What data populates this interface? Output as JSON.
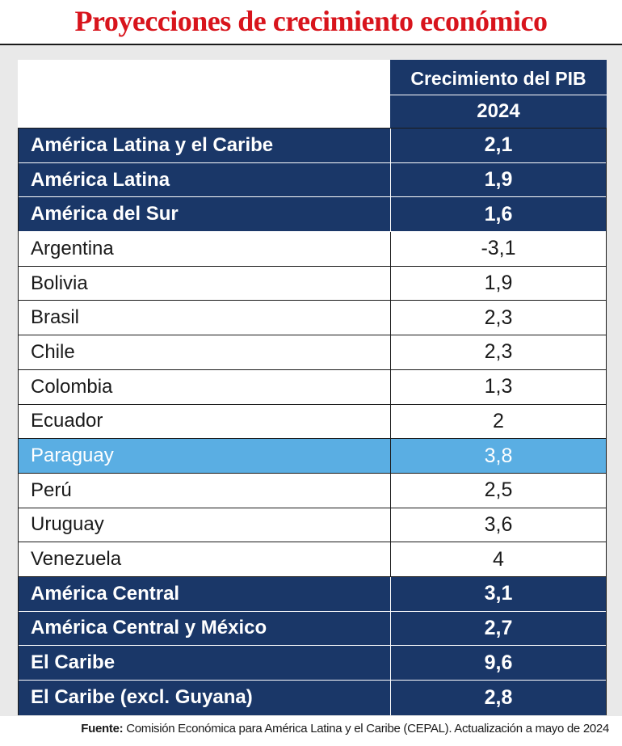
{
  "title": "Proyecciones de crecimiento económico",
  "chart_data": {
    "type": "table",
    "title": "Proyecciones de crecimiento económico",
    "column_header": "Crecimiento del PIB",
    "column_subheader": "2024",
    "rows": [
      {
        "name": "América Latina y el Caribe",
        "value": "2,1",
        "kind": "agg"
      },
      {
        "name": "América Latina",
        "value": "1,9",
        "kind": "agg"
      },
      {
        "name": "América del Sur",
        "value": "1,6",
        "kind": "agg"
      },
      {
        "name": "Argentina",
        "value": "-3,1",
        "kind": "country"
      },
      {
        "name": "Bolivia",
        "value": "1,9",
        "kind": "country"
      },
      {
        "name": "Brasil",
        "value": "2,3",
        "kind": "country"
      },
      {
        "name": "Chile",
        "value": "2,3",
        "kind": "country"
      },
      {
        "name": "Colombia",
        "value": "1,3",
        "kind": "country"
      },
      {
        "name": "Ecuador",
        "value": "2",
        "kind": "country"
      },
      {
        "name": "Paraguay",
        "value": "3,8",
        "kind": "highlight"
      },
      {
        "name": "Perú",
        "value": "2,5",
        "kind": "country"
      },
      {
        "name": "Uruguay",
        "value": "3,6",
        "kind": "country"
      },
      {
        "name": "Venezuela",
        "value": "4",
        "kind": "country"
      },
      {
        "name": "América Central",
        "value": "3,1",
        "kind": "agg"
      },
      {
        "name": "América Central y México",
        "value": "2,7",
        "kind": "agg"
      },
      {
        "name": "El Caribe",
        "value": "9,6",
        "kind": "agg"
      },
      {
        "name": "El Caribe (excl. Guyana)",
        "value": "2,8",
        "kind": "agg"
      }
    ]
  },
  "source": {
    "label": "Fuente:",
    "text": " Comisión Económica para América Latina y el Caribe (CEPAL). Actualización a mayo de 2024"
  },
  "colors": {
    "title": "#d8141c",
    "navy": "#1a3768",
    "highlight": "#5aaee3"
  }
}
